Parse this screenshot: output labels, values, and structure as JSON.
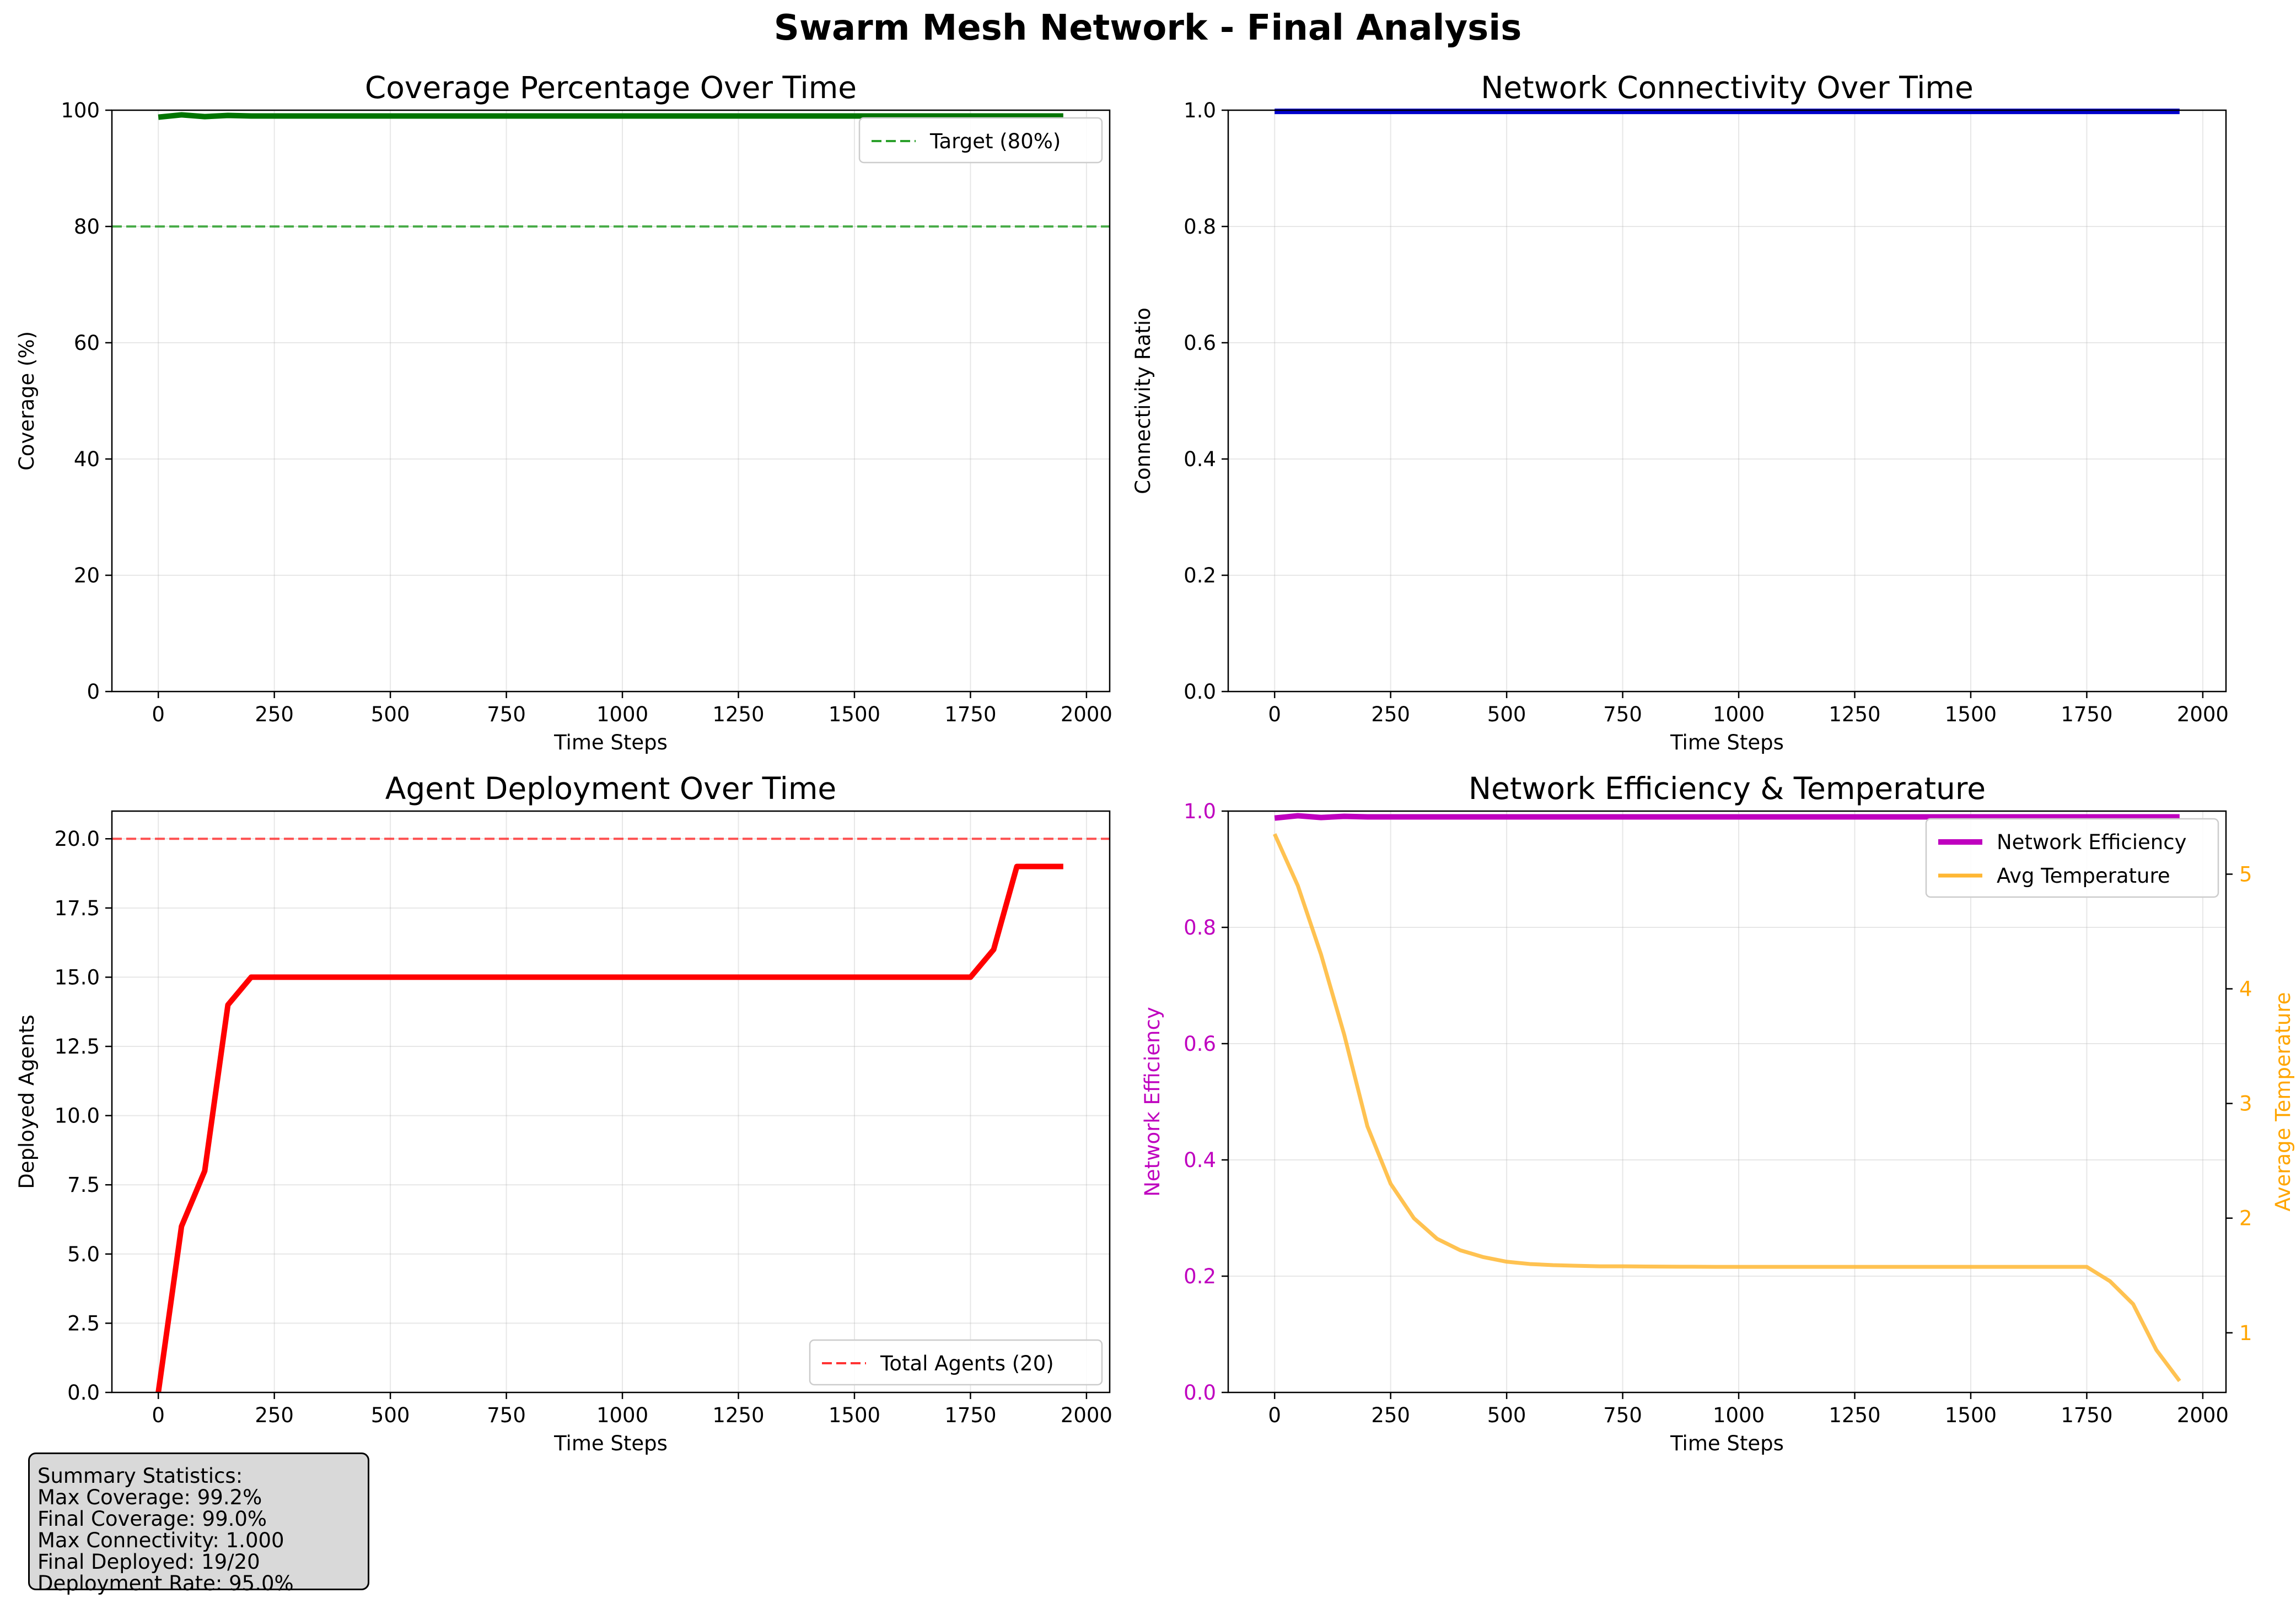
{
  "suptitle": "Swarm Mesh Network - Final Analysis",
  "summary": {
    "title": "Summary Statistics:",
    "lines": [
      "Max Coverage: 99.2%",
      "Final Coverage: 99.0%",
      "Max Connectivity: 1.000",
      "Final Deployed: 19/20",
      "Deployment Rate: 95.0%"
    ]
  },
  "chart_data": [
    {
      "type": "line",
      "title": "Coverage Percentage Over Time",
      "xlabel": "Time Steps",
      "ylabel": "Coverage (%)",
      "xlim": [
        -100,
        2050
      ],
      "ylim": [
        0,
        100
      ],
      "xticks": [
        0,
        250,
        500,
        750,
        1000,
        1250,
        1500,
        1750,
        2000
      ],
      "yticks": [
        0,
        20,
        40,
        60,
        80,
        100
      ],
      "grid": true,
      "legend": "top-right",
      "x": [
        0,
        50,
        100,
        150,
        200,
        250,
        300,
        350,
        400,
        450,
        500,
        550,
        600,
        650,
        700,
        750,
        800,
        850,
        900,
        950,
        1000,
        1050,
        1100,
        1150,
        1200,
        1250,
        1300,
        1350,
        1400,
        1450,
        1500,
        1550,
        1600,
        1650,
        1700,
        1750,
        1800,
        1850,
        1900,
        1950
      ],
      "series": [
        {
          "values": [
            98.8,
            99.2,
            98.9,
            99.1,
            99.0,
            99.0,
            99.0,
            99.0,
            99.0,
            99.0,
            99.0,
            99.0,
            99.0,
            99.0,
            99.0,
            99.0,
            99.0,
            99.0,
            99.0,
            99.0,
            99.0,
            99.0,
            99.0,
            99.0,
            99.0,
            99.0,
            99.0,
            99.0,
            99.0,
            99.0,
            99.0,
            99.0,
            99.0,
            99.0,
            99.0,
            99.0,
            99.0,
            99.0,
            99.0,
            99.0
          ],
          "color": "#007400"
        }
      ],
      "hlines": [
        {
          "name": "Target (80%)",
          "y": 80,
          "color": "#2ca02c",
          "dashed": true
        }
      ]
    },
    {
      "type": "line",
      "title": "Network Connectivity Over Time",
      "xlabel": "Time Steps",
      "ylabel": "Connectivity Ratio",
      "xlim": [
        -100,
        2050
      ],
      "ylim": [
        0,
        1.0
      ],
      "xticks": [
        0,
        250,
        500,
        750,
        1000,
        1250,
        1500,
        1750,
        2000
      ],
      "yticks": [
        "0.0",
        "0.2",
        "0.4",
        "0.6",
        "0.8",
        "1.0"
      ],
      "grid": true,
      "x": [
        0,
        1950
      ],
      "series": [
        {
          "values": [
            0.998,
            0.998
          ],
          "color": "#0000cc"
        }
      ]
    },
    {
      "type": "line",
      "title": "Agent Deployment Over Time",
      "xlabel": "Time Steps",
      "ylabel": "Deployed Agents",
      "xlim": [
        -100,
        2050
      ],
      "ylim": [
        0,
        21
      ],
      "xticks": [
        0,
        250,
        500,
        750,
        1000,
        1250,
        1500,
        1750,
        2000
      ],
      "yticks": [
        "0.0",
        "2.5",
        "5.0",
        "7.5",
        "10.0",
        "12.5",
        "15.0",
        "17.5",
        "20.0"
      ],
      "grid": true,
      "legend": "bottom-right",
      "x": [
        0,
        50,
        100,
        150,
        200,
        250,
        300,
        1750,
        1800,
        1850,
        1900,
        1950
      ],
      "series": [
        {
          "values": [
            0,
            6,
            8,
            14,
            15,
            15,
            15,
            15,
            16,
            19,
            19,
            19
          ],
          "color": "#ff0000"
        }
      ],
      "hlines": [
        {
          "name": "Total Agents (20)",
          "y": 20,
          "color": "#ff3333",
          "dashed": true
        }
      ]
    },
    {
      "type": "line",
      "title": "Network Efficiency & Temperature",
      "xlabel": "Time Steps",
      "ylabel": "Network Efficiency",
      "ylabel_right": "Average Temperature",
      "xlim": [
        -100,
        2050
      ],
      "ylim": [
        0,
        1.0
      ],
      "ylim_right": [
        0.48,
        5.55
      ],
      "xticks": [
        0,
        250,
        500,
        750,
        1000,
        1250,
        1500,
        1750,
        2000
      ],
      "yticks": [
        "0.0",
        "0.2",
        "0.4",
        "0.6",
        "0.8",
        "1.0"
      ],
      "yticks_right": [
        1,
        2,
        3,
        4,
        5
      ],
      "grid": true,
      "legend": "top-right",
      "x": [
        0,
        50,
        100,
        150,
        200,
        250,
        300,
        350,
        400,
        450,
        500,
        550,
        600,
        650,
        700,
        750,
        800,
        850,
        900,
        950,
        1000,
        1050,
        1100,
        1150,
        1200,
        1250,
        1300,
        1350,
        1400,
        1450,
        1500,
        1550,
        1600,
        1650,
        1700,
        1750,
        1800,
        1850,
        1900,
        1950
      ],
      "series": [
        {
          "name": "Network Efficiency",
          "axis": "left",
          "color": "#bf00bf",
          "values": [
            0.988,
            0.992,
            0.989,
            0.991,
            0.99,
            0.99,
            0.99,
            0.99,
            0.99,
            0.99,
            0.99,
            0.99,
            0.99,
            0.99,
            0.99,
            0.99,
            0.99,
            0.99,
            0.99,
            0.99,
            0.99,
            0.99,
            0.99,
            0.99,
            0.99,
            0.99,
            0.99,
            0.99,
            0.99,
            0.99,
            0.99,
            0.99,
            0.99,
            0.99,
            0.99,
            0.99,
            0.99,
            0.99,
            0.99,
            0.99
          ]
        },
        {
          "name": "Avg Temperature",
          "axis": "right",
          "color": "#ffb733",
          "values": [
            5.35,
            4.9,
            4.3,
            3.6,
            2.8,
            2.3,
            2.0,
            1.82,
            1.72,
            1.66,
            1.62,
            1.6,
            1.59,
            1.585,
            1.58,
            1.58,
            1.578,
            1.577,
            1.576,
            1.575,
            1.575,
            1.575,
            1.575,
            1.575,
            1.575,
            1.575,
            1.575,
            1.575,
            1.575,
            1.575,
            1.575,
            1.575,
            1.575,
            1.575,
            1.575,
            1.575,
            1.45,
            1.25,
            0.85,
            0.58
          ]
        }
      ]
    }
  ]
}
